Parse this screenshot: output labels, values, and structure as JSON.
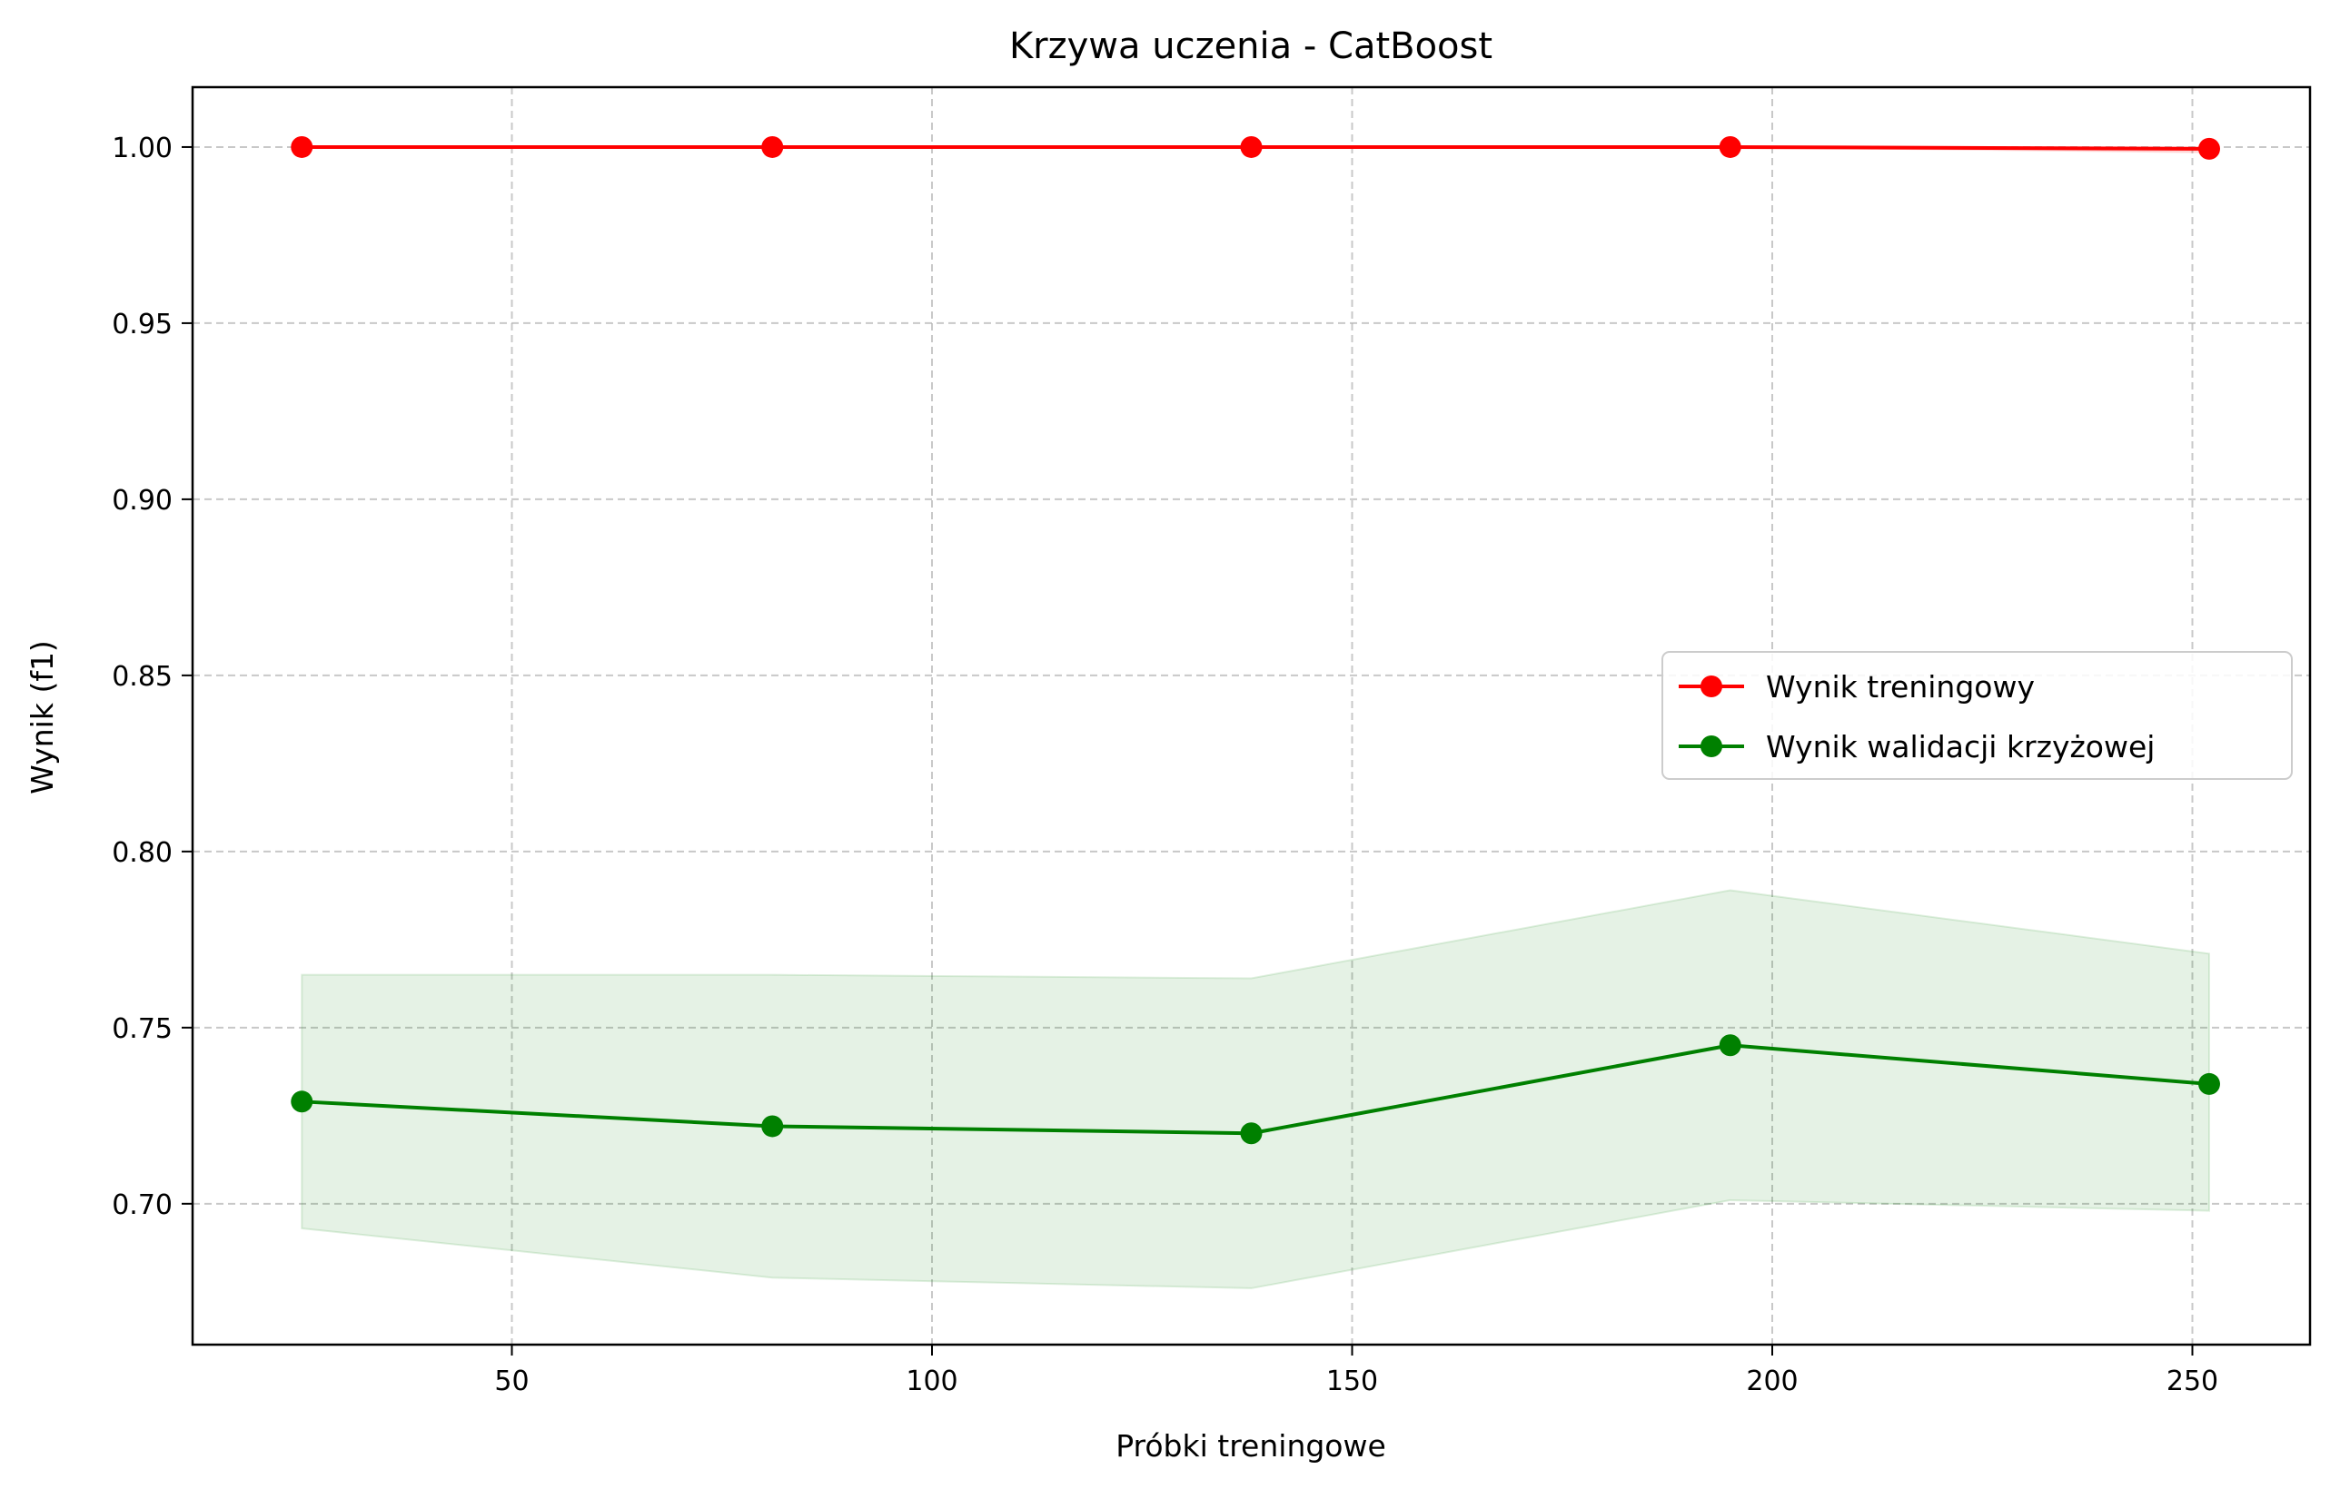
{
  "chart_data": {
    "type": "line",
    "title": "Krzywa uczenia - CatBoost",
    "xlabel": "Próbki treningowe",
    "ylabel": "Wynik (f1)",
    "xlim": [
      12,
      264
    ],
    "ylim": [
      0.66,
      1.017
    ],
    "xticks": [
      50,
      100,
      150,
      200,
      250
    ],
    "yticks": [
      0.7,
      0.75,
      0.8,
      0.85,
      0.9,
      0.95,
      1.0
    ],
    "xtick_labels": [
      "50",
      "100",
      "150",
      "200",
      "250"
    ],
    "ytick_labels": [
      "0.70",
      "0.75",
      "0.80",
      "0.85",
      "0.90",
      "0.95",
      "1.00"
    ],
    "grid": true,
    "legend_position": "center-right",
    "x": [
      25,
      81,
      138,
      195,
      252
    ],
    "series": [
      {
        "name": "Wynik treningowy",
        "color": "#ff0000",
        "values": [
          1.0,
          1.0,
          1.0,
          1.0,
          0.9995
        ],
        "band_lower": [
          1.0,
          1.0,
          1.0,
          1.0,
          0.9985
        ],
        "band_upper": [
          1.0,
          1.0,
          1.0,
          1.0,
          1.0
        ],
        "band_color": "#ff0000"
      },
      {
        "name": "Wynik walidacji krzyżowej",
        "color": "#008000",
        "values": [
          0.729,
          0.722,
          0.72,
          0.745,
          0.734
        ],
        "band_lower": [
          0.693,
          0.679,
          0.676,
          0.701,
          0.698
        ],
        "band_upper": [
          0.765,
          0.765,
          0.764,
          0.789,
          0.771
        ],
        "band_color": "#008000"
      }
    ]
  }
}
